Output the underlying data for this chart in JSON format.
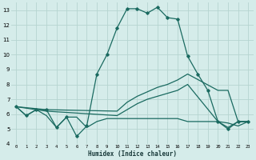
{
  "xlabel": "Humidex (Indice chaleur)",
  "background_color": "#d5ecea",
  "grid_color": "#b5d5d0",
  "line_color": "#1a6a60",
  "xlim": [
    -0.5,
    23.5
  ],
  "ylim": [
    4,
    13.5
  ],
  "yticks": [
    4,
    5,
    6,
    7,
    8,
    9,
    10,
    11,
    12,
    13
  ],
  "xticks": [
    0,
    1,
    2,
    3,
    4,
    5,
    6,
    7,
    8,
    9,
    10,
    11,
    12,
    13,
    14,
    15,
    16,
    17,
    18,
    19,
    20,
    21,
    22,
    23
  ],
  "series": [
    {
      "x": [
        0,
        1,
        2,
        3,
        4,
        5,
        6,
        7,
        8,
        9,
        10,
        11,
        12,
        13,
        14,
        15,
        16,
        17,
        18,
        19,
        20,
        21,
        22,
        23
      ],
      "y": [
        6.5,
        5.9,
        6.3,
        6.3,
        5.1,
        5.8,
        4.5,
        5.2,
        8.7,
        10.0,
        11.8,
        13.1,
        13.1,
        12.8,
        13.2,
        12.5,
        12.4,
        9.9,
        8.7,
        7.6,
        5.5,
        5.0,
        5.5,
        5.5
      ],
      "marker": "D",
      "markersize": 1.8,
      "linewidth": 0.9
    },
    {
      "x": [
        0,
        3,
        10,
        11,
        12,
        13,
        14,
        15,
        16,
        17,
        20,
        21,
        22,
        23
      ],
      "y": [
        6.5,
        6.3,
        6.2,
        6.8,
        7.2,
        7.5,
        7.8,
        8.0,
        8.3,
        8.7,
        7.6,
        7.6,
        5.5,
        5.5
      ],
      "marker": null,
      "markersize": 0,
      "linewidth": 0.9
    },
    {
      "x": [
        0,
        3,
        10,
        11,
        12,
        13,
        14,
        15,
        16,
        17,
        20,
        21,
        22,
        23
      ],
      "y": [
        6.5,
        6.2,
        5.9,
        6.3,
        6.7,
        7.0,
        7.2,
        7.4,
        7.6,
        8.0,
        5.5,
        5.4,
        5.2,
        5.5
      ],
      "marker": null,
      "markersize": 0,
      "linewidth": 0.9
    },
    {
      "x": [
        0,
        1,
        2,
        3,
        4,
        5,
        6,
        7,
        8,
        9,
        10,
        11,
        12,
        13,
        14,
        15,
        16,
        17,
        18,
        19,
        20,
        21,
        22,
        23
      ],
      "y": [
        6.5,
        5.9,
        6.3,
        5.9,
        5.1,
        5.8,
        5.8,
        5.1,
        5.5,
        5.7,
        5.7,
        5.7,
        5.7,
        5.7,
        5.7,
        5.7,
        5.7,
        5.5,
        5.5,
        5.5,
        5.5,
        5.1,
        5.5,
        5.5
      ],
      "marker": null,
      "markersize": 0,
      "linewidth": 0.9
    }
  ]
}
